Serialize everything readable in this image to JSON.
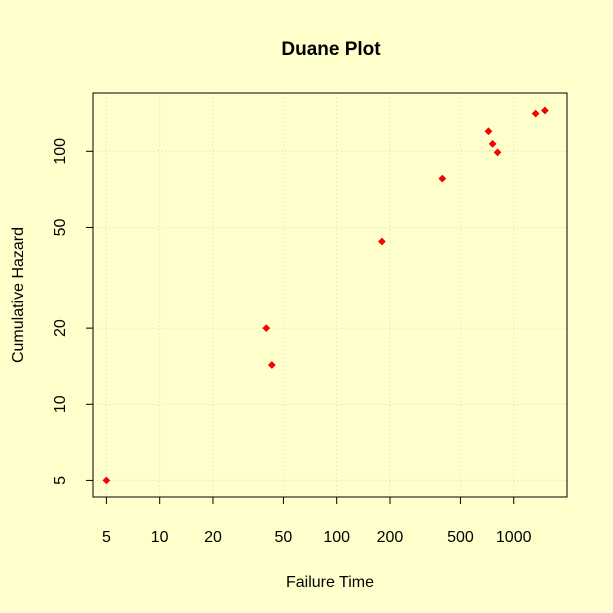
{
  "chart_data": {
    "type": "scatter",
    "title": "Duane Plot",
    "xlabel": "Failure Time",
    "ylabel": "Cumulative Hazard",
    "x_scale": "log",
    "y_scale": "log",
    "xlim": [
      4.2,
      2000
    ],
    "ylim": [
      4.3,
      170
    ],
    "x_ticks": [
      5,
      10,
      20,
      50,
      100,
      200,
      500,
      1000
    ],
    "x_tick_labels": [
      "5",
      "10",
      "20",
      "50",
      "100",
      "200",
      "500",
      "1000"
    ],
    "y_ticks": [
      5,
      10,
      20,
      50,
      100
    ],
    "y_tick_labels": [
      "5",
      "10",
      "20",
      "50",
      "100"
    ],
    "grid": true,
    "colors": {
      "background": "#ffffcc",
      "points": "#ff0000",
      "grid": "#d3d3d3"
    },
    "points": [
      {
        "x": 5,
        "y": 5
      },
      {
        "x": 40,
        "y": 20
      },
      {
        "x": 43,
        "y": 14.3
      },
      {
        "x": 180,
        "y": 44
      },
      {
        "x": 395,
        "y": 78
      },
      {
        "x": 720,
        "y": 120
      },
      {
        "x": 760,
        "y": 107
      },
      {
        "x": 810,
        "y": 99
      },
      {
        "x": 1330,
        "y": 141
      },
      {
        "x": 1500,
        "y": 145
      }
    ]
  }
}
